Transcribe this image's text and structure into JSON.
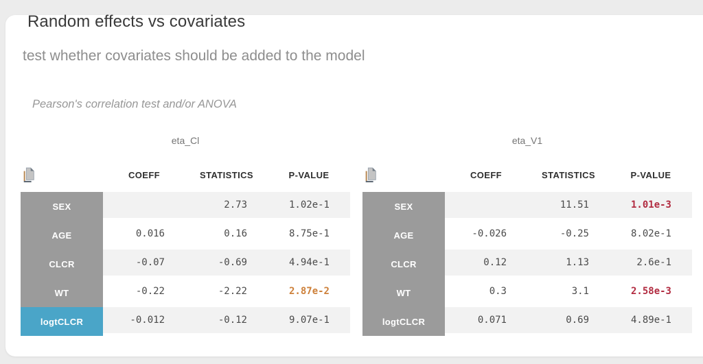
{
  "header": {
    "title": "Random effects vs covariates",
    "subtitle": "test whether covariates should be added to the model",
    "method_note": "Pearson's correlation test and/or ANOVA"
  },
  "columns": [
    "COEFF",
    "STATISTICS",
    "P-VALUE"
  ],
  "icons": {
    "copy_table": "copy-table-icon"
  },
  "colors": {
    "page_background": "#ececec",
    "panel_background": "#ffffff",
    "row_header_gray": "#9b9b9b",
    "row_stripe_gray": "#f2f2f2",
    "highlight_blue": "#4aa5c8",
    "significant_p_lt_005": "#cd803a",
    "significant_p_lt_001": "#b12b40"
  },
  "tables": [
    {
      "eta_label": "eta_Cl",
      "rows": [
        {
          "label": "SEX",
          "coeff": "",
          "statistics": "2.73",
          "p_value": "1.02e-1",
          "p_level": "ns",
          "label_highlight": false
        },
        {
          "label": "AGE",
          "coeff": "0.016",
          "statistics": "0.16",
          "p_value": "8.75e-1",
          "p_level": "ns",
          "label_highlight": false
        },
        {
          "label": "CLCR",
          "coeff": "-0.07",
          "statistics": "-0.69",
          "p_value": "4.94e-1",
          "p_level": "ns",
          "label_highlight": false
        },
        {
          "label": "WT",
          "coeff": "-0.22",
          "statistics": "-2.22",
          "p_value": "2.87e-2",
          "p_level": "p05",
          "label_highlight": false
        },
        {
          "label": "logtCLCR",
          "coeff": "-0.012",
          "statistics": "-0.12",
          "p_value": "9.07e-1",
          "p_level": "ns",
          "label_highlight": true
        }
      ]
    },
    {
      "eta_label": "eta_V1",
      "rows": [
        {
          "label": "SEX",
          "coeff": "",
          "statistics": "11.51",
          "p_value": "1.01e-3",
          "p_level": "p01",
          "label_highlight": false
        },
        {
          "label": "AGE",
          "coeff": "-0.026",
          "statistics": "-0.25",
          "p_value": "8.02e-1",
          "p_level": "ns",
          "label_highlight": false
        },
        {
          "label": "CLCR",
          "coeff": "0.12",
          "statistics": "1.13",
          "p_value": "2.6e-1",
          "p_level": "ns",
          "label_highlight": false
        },
        {
          "label": "WT",
          "coeff": "0.3",
          "statistics": "3.1",
          "p_value": "2.58e-3",
          "p_level": "p01",
          "label_highlight": false
        },
        {
          "label": "logtCLCR",
          "coeff": "0.071",
          "statistics": "0.69",
          "p_value": "4.89e-1",
          "p_level": "ns",
          "label_highlight": false
        }
      ]
    }
  ]
}
